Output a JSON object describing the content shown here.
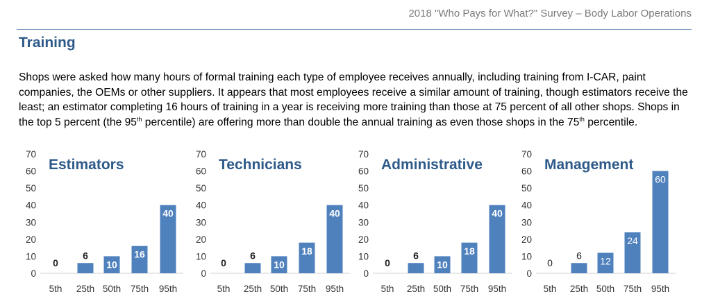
{
  "header": {
    "title": "2018 \"Who Pays for What?\" Survey – Body Labor Operations"
  },
  "section": {
    "title": "Training"
  },
  "body": {
    "p1": "Shops were asked how many hours of formal training each type of employee receives annually, including training from I-CAR, paint companies, the OEMs or other suppliers. It appears that most employees receive a similar amount of training, though estimators receive the least; an estimator completing 16 hours of training in a year is receiving more training than those at 75 percent of all other shops. Shops in the top 5 percent (the 95",
    "sup1": "th",
    "p2": " percentile) are offering more than double the annual training as even those shops in the 75",
    "sup2": "th",
    "p3": " percentile."
  },
  "colors": {
    "bar": "#4f81bd",
    "title": "#2e5a8a",
    "rule": "#7f9ec4"
  },
  "chart_data": [
    {
      "type": "bar",
      "title": "Estimators",
      "categories": [
        "5th",
        "25th",
        "50th",
        "75th",
        "95th"
      ],
      "values": [
        0,
        6,
        10,
        16,
        40
      ],
      "ylim": [
        0,
        70
      ],
      "yticks": [
        0,
        10,
        20,
        30,
        40,
        50,
        60,
        70
      ],
      "xlabel": "",
      "ylabel": "",
      "grid": false,
      "legend": "none",
      "bold_labels": true
    },
    {
      "type": "bar",
      "title": "Technicians",
      "categories": [
        "5th",
        "25th",
        "50th",
        "75th",
        "95th"
      ],
      "values": [
        0,
        6,
        10,
        18,
        40
      ],
      "ylim": [
        0,
        70
      ],
      "yticks": [
        0,
        10,
        20,
        30,
        40,
        50,
        60,
        70
      ],
      "xlabel": "",
      "ylabel": "",
      "grid": false,
      "legend": "none",
      "bold_labels": true
    },
    {
      "type": "bar",
      "title": "Administrative",
      "categories": [
        "5th",
        "25th",
        "50th",
        "75th",
        "95th"
      ],
      "values": [
        0,
        6,
        10,
        18,
        40
      ],
      "ylim": [
        0,
        70
      ],
      "yticks": [
        0,
        10,
        20,
        30,
        40,
        50,
        60,
        70
      ],
      "xlabel": "",
      "ylabel": "",
      "grid": false,
      "legend": "none",
      "bold_labels": true
    },
    {
      "type": "bar",
      "title": "Management",
      "categories": [
        "5th",
        "25th",
        "50th",
        "75th",
        "95th"
      ],
      "values": [
        0,
        6,
        12,
        24,
        60
      ],
      "ylim": [
        0,
        70
      ],
      "yticks": [
        0,
        10,
        20,
        30,
        40,
        50,
        60,
        70
      ],
      "xlabel": "",
      "ylabel": "",
      "grid": false,
      "legend": "none",
      "bold_labels": false
    }
  ]
}
